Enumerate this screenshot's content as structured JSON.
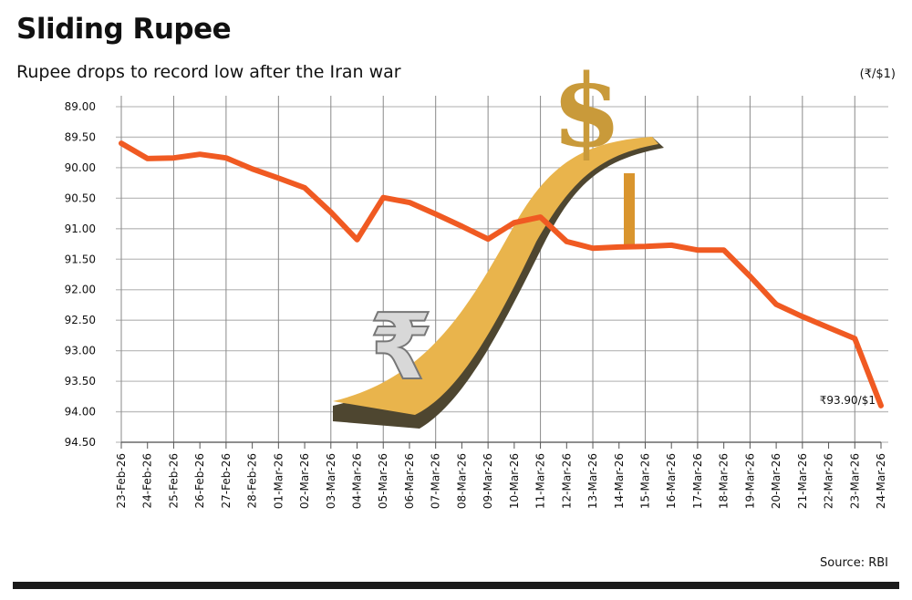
{
  "header": {
    "title": "Sliding Rupee",
    "subtitle": "Rupee drops to record low after the Iran war",
    "unit": "(₹/$1)"
  },
  "footer": {
    "source": "Source: RBI"
  },
  "chart_data": {
    "type": "line",
    "title": "Sliding Rupee",
    "subtitle": "Rupee drops to record low after the Iran war",
    "ylabel": "(₹/$1)",
    "y_inverted": true,
    "ylim": [
      89.0,
      94.5
    ],
    "yticks": [
      "89.00",
      "89.50",
      "90.00",
      "90.50",
      "91.00",
      "91.50",
      "92.00",
      "92.50",
      "93.00",
      "93.50",
      "94.00",
      "94.50"
    ],
    "grid": true,
    "line_color": "#f05a22",
    "categories": [
      "23-Feb-26",
      "24-Feb-26",
      "25-Feb-26",
      "26-Feb-26",
      "27-Feb-26",
      "28-Feb-26",
      "01-Mar-26",
      "02-Mar-26",
      "03-Mar-26",
      "04-Mar-26",
      "05-Mar-26",
      "06-Mar-26",
      "07-Mar-26",
      "08-Mar-26",
      "09-Mar-26",
      "10-Mar-26",
      "11-Mar-26",
      "12-Mar-26",
      "13-Mar-26",
      "14-Mar-26",
      "15-Mar-26",
      "16-Mar-26",
      "17-Mar-26",
      "18-Mar-26",
      "19-Mar-26",
      "20-Mar-26",
      "21-Mar-26",
      "22-Mar-26",
      "23-Mar-26",
      "24-Mar-26"
    ],
    "values": [
      89.6,
      89.85,
      89.84,
      89.78,
      89.84,
      90.02,
      90.17,
      90.33,
      90.73,
      91.18,
      90.49,
      90.57,
      90.76,
      90.96,
      91.17,
      90.9,
      90.81,
      91.21,
      91.32,
      91.3,
      91.29,
      91.27,
      91.35,
      91.35,
      91.78,
      92.24,
      92.44,
      92.62,
      92.8,
      93.9
    ],
    "annotations": [
      {
        "category": "24-Mar-26",
        "text": "₹93.90/$1"
      }
    ]
  }
}
